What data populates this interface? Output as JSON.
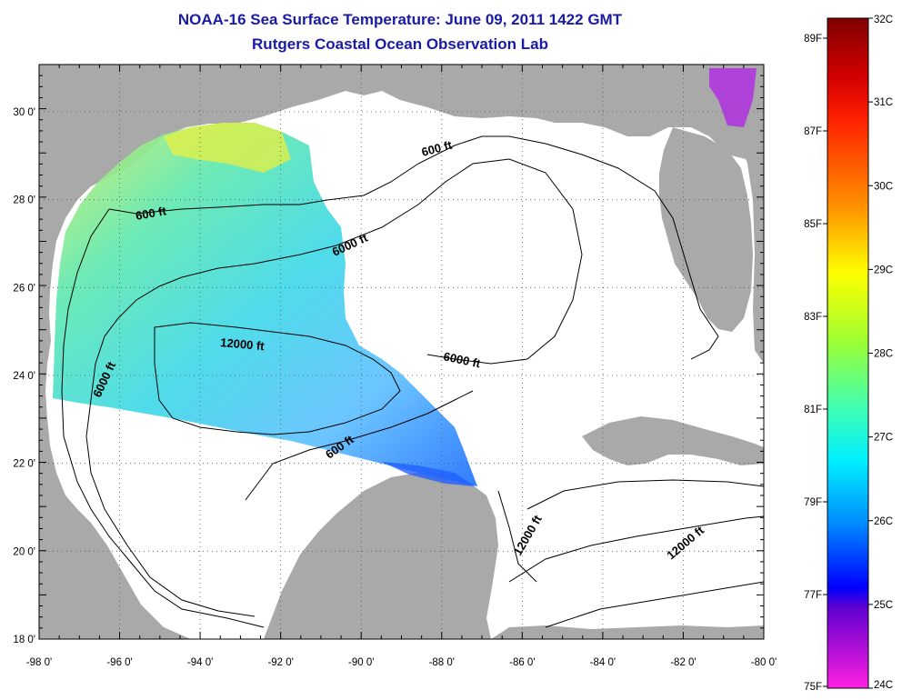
{
  "title": {
    "line1": "NOAA-16 Sea Surface Temperature:  June 09, 2011 1422 GMT",
    "line2": "Rutgers Coastal Ocean Observation Lab"
  },
  "map": {
    "lon_ticks": [
      "-98 0'",
      "-96 0'",
      "-94 0'",
      "-92 0'",
      "-90 0'",
      "-88 0'",
      "-86 0'",
      "-84 0'",
      "-82 0'",
      "-80 0'"
    ],
    "lat_ticks": [
      "30 0'",
      "28 0'",
      "26 0'",
      "24 0'",
      "22 0'",
      "20 0'",
      "18 0'"
    ],
    "contour_labels": [
      "600 ft",
      "600 ft",
      "600 ft",
      "6000 ft",
      "6000 ft",
      "6000 ft",
      "12000 ft",
      "12000 ft",
      "12000 ft"
    ],
    "land_color": "#a9a9a9",
    "ocean_color": "#ffffff"
  },
  "colorbar": {
    "celsius_labels": [
      "32C",
      "31C",
      "30C",
      "29C",
      "28C",
      "27C",
      "26C",
      "25C",
      "24C"
    ],
    "fahrenheit_labels": [
      "89F",
      "87F",
      "85F",
      "83F",
      "81F",
      "79F",
      "77F",
      "75F"
    ],
    "colors": [
      "#800000",
      "#ff0000",
      "#ff8000",
      "#ffff00",
      "#80ff00",
      "#00ffc0",
      "#0080ff",
      "#0000ff",
      "#8000c0",
      "#ff00ff"
    ]
  }
}
